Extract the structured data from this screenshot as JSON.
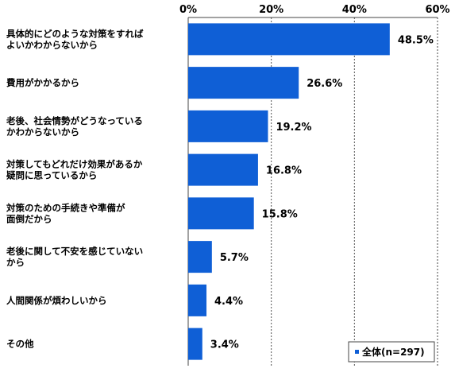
{
  "chart_data": {
    "type": "bar",
    "orientation": "horizontal",
    "categories": [
      [
        "具体的にどのような対策をすれば",
        "よいかわからないから"
      ],
      [
        "費用がかかるから"
      ],
      [
        "老後、社会情勢がどうなっている",
        "かわからないから"
      ],
      [
        "対策してもどれだけ効果があるか",
        "疑問に思っているから"
      ],
      [
        "対策のための手続きや準備が",
        "面倒だから"
      ],
      [
        "老後に関して不安を感じていない",
        "から"
      ],
      [
        "人間関係が煩わしいから"
      ],
      [
        "その他"
      ]
    ],
    "series": [
      {
        "name": "全体(n=297)",
        "values": [
          48.5,
          26.6,
          19.2,
          16.8,
          15.8,
          5.7,
          4.4,
          3.4
        ],
        "labels": [
          "48.5%",
          "26.6%",
          "19.2%",
          "16.8%",
          "15.8%",
          "5.7%",
          "4.4%",
          "3.4%"
        ],
        "color": "#0F5FD6"
      }
    ],
    "xlim": [
      0,
      60
    ],
    "ticks": [
      0,
      20,
      40,
      60
    ],
    "tick_labels": [
      "0%",
      "20%",
      "40%",
      "60%"
    ],
    "xlabel": "",
    "ylabel": "",
    "grid": true,
    "legend_position": "bottom-right"
  }
}
